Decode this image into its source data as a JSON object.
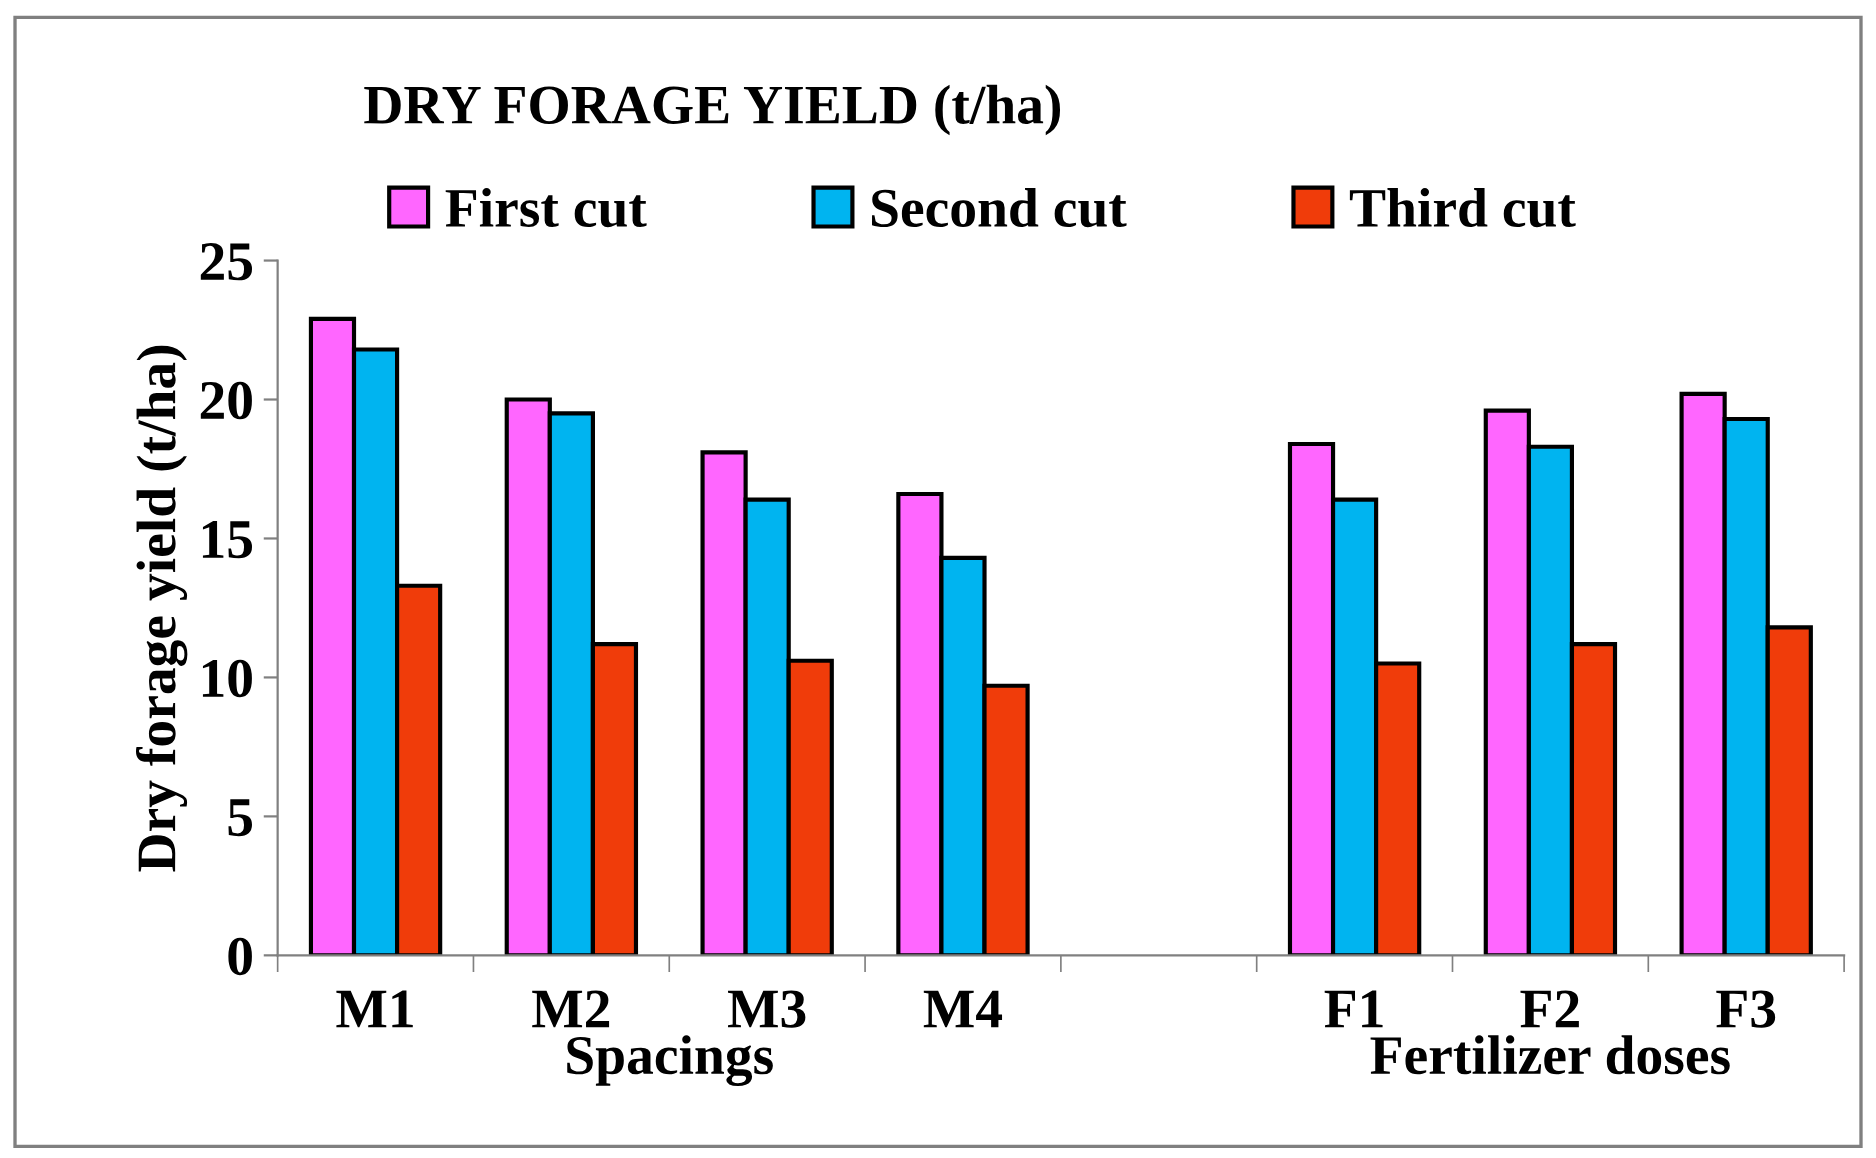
{
  "chart_data": {
    "type": "bar",
    "title": "DRY FORAGE YIELD (t/ha)",
    "ylabel": "Dry forage yield (t/ha)",
    "categories": [
      "M1",
      "M2",
      "M3",
      "M4",
      null,
      "F1",
      "F2",
      "F3"
    ],
    "series": [
      {
        "name": "First cut",
        "color": "#ff66ff",
        "values": [
          22.9,
          20.0,
          18.1,
          16.6,
          null,
          18.4,
          19.6,
          20.2
        ]
      },
      {
        "name": "Second cut",
        "color": "#00b4f0",
        "values": [
          21.8,
          19.5,
          16.4,
          14.3,
          null,
          16.4,
          18.3,
          19.3
        ]
      },
      {
        "name": "Third cut",
        "color": "#f03c0a",
        "values": [
          13.3,
          11.2,
          10.6,
          9.7,
          null,
          10.5,
          11.2,
          11.8
        ]
      }
    ],
    "annotations": [
      "Spacings",
      "Fertilizer doses"
    ],
    "ylim": [
      0,
      25
    ],
    "yticks": [
      0,
      5,
      10,
      15,
      20,
      25
    ],
    "grid": false,
    "legend": "top"
  }
}
